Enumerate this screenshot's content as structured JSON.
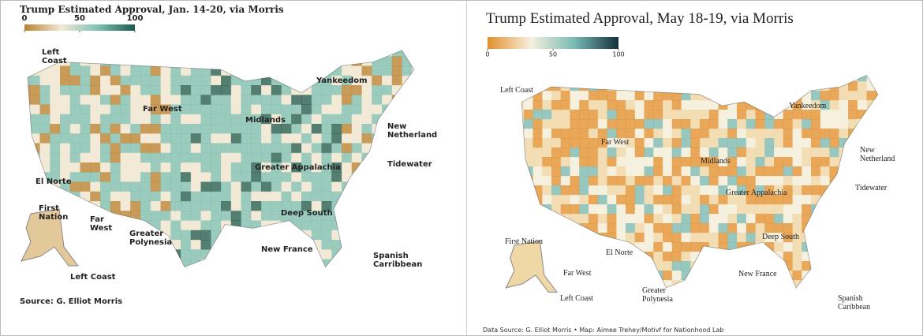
{
  "panels": [
    {
      "title": "Trump Estimated Approval, Jan. 14-20, via Morris",
      "colorbar": {
        "ticks": [
          0,
          50,
          100
        ],
        "colors": [
          "#b9802f",
          "#f2ead6",
          "#7cc0b4",
          "#1d5a4e"
        ]
      },
      "labels": [
        "Left Coast",
        "Far West",
        "Yankeedom",
        "Midlands",
        "New Netherland",
        "Greater Appalachia",
        "Tidewater",
        "El Norte",
        "First Nation",
        "Far West",
        "Greater Polynesia",
        "Deep South",
        "New France",
        "Spanish Carribbean",
        "Left Coast"
      ],
      "source": "Source: G. Elliot Morris"
    },
    {
      "title": "Trump Estimated Approval, May 18-19, via Morris",
      "colorbar": {
        "ticks": [
          0,
          50,
          100
        ],
        "colors": [
          "#e38f2c",
          "#f6f0dd",
          "#77b9b4",
          "#13303a"
        ]
      },
      "labels": [
        "Left Coast",
        "Far West",
        "Yankeedom",
        "Midlands",
        "New Netherland",
        "Greater Appalachia",
        "Tidewater",
        "First Nation",
        "El Norte",
        "Far West",
        "Left Coast",
        "Greater Polynesia",
        "Deep South",
        "New France",
        "Spanish Caribbean"
      ],
      "source": "Data Source: G. Elliot Morris • Map: Aimee Trehey/Motivf for Nationhood Lab"
    }
  ]
}
